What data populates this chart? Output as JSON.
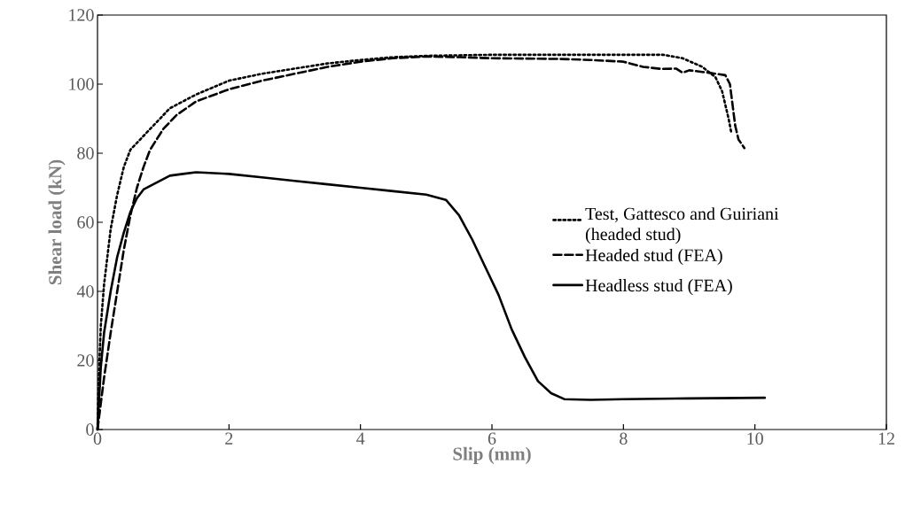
{
  "chart_data": {
    "type": "line",
    "xlabel": "Slip (mm)",
    "ylabel": "Shear load (kN)",
    "xlim": [
      0,
      12
    ],
    "xticks": [
      0,
      2,
      4,
      6,
      8,
      10,
      12
    ],
    "ylim": [
      0,
      120
    ],
    "yticks": [
      0,
      20,
      40,
      60,
      80,
      100,
      120
    ],
    "grid": false,
    "legend": "right",
    "marker": "none",
    "series": [
      {
        "name": "Test, Gattesco and Guiriani (headed stud)",
        "color": "#000000",
        "line_style": "dotted",
        "x": [
          0,
          0.02,
          0.05,
          0.1,
          0.2,
          0.3,
          0.4,
          0.5,
          0.7,
          0.9,
          1.1,
          1.5,
          2,
          2.5,
          3,
          3.5,
          4,
          4.5,
          5,
          6,
          7,
          8,
          8.6,
          8.9,
          9.2,
          9.4,
          9.5,
          9.6,
          9.64
        ],
        "values": [
          0,
          15,
          30,
          42,
          58,
          68,
          76,
          81,
          85,
          89,
          93,
          97,
          101,
          103,
          104.5,
          106,
          107,
          107.8,
          108.2,
          108.5,
          108.5,
          108.5,
          108.5,
          107.5,
          105,
          102,
          98,
          90,
          86
        ]
      },
      {
        "name": "Headed stud (FEA)",
        "color": "#000000",
        "line_style": "dashed",
        "x": [
          0,
          0.1,
          0.2,
          0.3,
          0.4,
          0.5,
          0.6,
          0.7,
          0.8,
          1,
          1.2,
          1.5,
          2,
          2.5,
          3,
          3.5,
          4,
          4.5,
          5,
          5.5,
          6,
          7,
          7.5,
          8,
          8.3,
          8.58,
          8.8,
          8.9,
          9,
          9.3,
          9.55,
          9.62,
          9.66,
          9.7,
          9.75,
          9.84
        ],
        "values": [
          0,
          15,
          28,
          40,
          52,
          62,
          70,
          76,
          81,
          87,
          91,
          95,
          98.5,
          101,
          103,
          105,
          106.5,
          107.5,
          108,
          107.8,
          107.5,
          107.3,
          107,
          106.5,
          105,
          104.4,
          104.5,
          103.3,
          104,
          103.3,
          102.6,
          100,
          94,
          88,
          84,
          81.5
        ]
      },
      {
        "name": "Headless stud (FEA)",
        "color": "#000000",
        "line_style": "solid",
        "x": [
          0,
          0.05,
          0.1,
          0.2,
          0.3,
          0.4,
          0.5,
          0.6,
          0.7,
          0.9,
          1.1,
          1.3,
          1.5,
          2,
          2.5,
          3,
          3.5,
          4,
          4.5,
          5,
          5.3,
          5.5,
          5.7,
          5.9,
          6.1,
          6.3,
          6.5,
          6.7,
          6.9,
          7.1,
          7.5,
          8,
          9,
          10.15
        ],
        "values": [
          0,
          18,
          28,
          40,
          50,
          57,
          63,
          67,
          69.5,
          71.5,
          73.5,
          74,
          74.5,
          74,
          73,
          72,
          71,
          70,
          69,
          68,
          66.5,
          62,
          55,
          47,
          39,
          29,
          21,
          14,
          10.5,
          8.8,
          8.6,
          8.8,
          9,
          9.2
        ]
      }
    ]
  }
}
